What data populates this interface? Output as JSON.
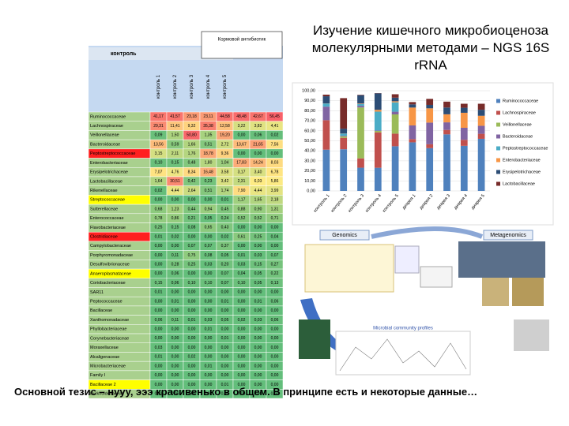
{
  "title": "Изучение кишечного микробиоценоза молекулярными методами – NGS 16S rRNA",
  "caption": "Основной тезис – нууу, эээ красивенько в общем.  В принципе есть и некоторые данные…",
  "table": {
    "group_header": "контроль",
    "note_box": "Кормовой антибиотик",
    "columns": [
      "контроль 1",
      "контроль 2",
      "контроль 3",
      "контроль 4",
      "контроль 5",
      null,
      null,
      null
    ],
    "rows": [
      {
        "name": "Ruminococcaceae",
        "color": "#a9d08e",
        "cells": [
          "41,17",
          "41,57",
          "23,18",
          "23,11",
          "44,58",
          "48,48",
          "42,67",
          "56,45"
        ]
      },
      {
        "name": "Lachnospiraceae",
        "color": "#a9d08e",
        "cells": [
          "29,31",
          "11,41",
          "9,32",
          "35,38",
          "12,58",
          "3,22",
          "3,82",
          "4,41"
        ]
      },
      {
        "name": "Veillonellaceae",
        "color": "#a9d08e",
        "cells": [
          "0,09",
          "1,50",
          "50,80",
          "1,35",
          "19,20",
          "0,00",
          "0,06",
          "0,02"
        ]
      },
      {
        "name": "Bacteroidaceae",
        "color": "#a9d08e",
        "cells": [
          "13,56",
          "0,59",
          "1,66",
          "0,51",
          "2,72",
          "13,67",
          "21,65",
          "7,56"
        ]
      },
      {
        "name": "Peptostreptococcaceae",
        "color": "#ff2020",
        "cells": [
          "3,15",
          "2,11",
          "1,76",
          "18,78",
          "9,36",
          "0,00",
          "0,00",
          "0,00"
        ]
      },
      {
        "name": "Enterobacteriaceae",
        "color": "#a9d08e",
        "cells": [
          "0,10",
          "0,15",
          "0,48",
          "1,80",
          "1,04",
          "17,83",
          "14,24",
          "8,03"
        ]
      },
      {
        "name": "Erysipelotrichaceae",
        "color": "#a9d08e",
        "cells": [
          "7,07",
          "4,76",
          "8,34",
          "16,48",
          "3,58",
          "3,17",
          "3,40",
          "6,78"
        ]
      },
      {
        "name": "Lactobacillaceae",
        "color": "#a9d08e",
        "cells": [
          "1,64",
          "30,51",
          "0,42",
          "0,23",
          "3,42",
          "2,31",
          "6,03",
          "5,86"
        ]
      },
      {
        "name": "Rikenellaceae",
        "color": "#a9d08e",
        "cells": [
          "0,02",
          "4,44",
          "2,64",
          "0,51",
          "1,74",
          "7,90",
          "4,44",
          "3,99"
        ]
      },
      {
        "name": "Streptococcaceae",
        "color": "#ffff00",
        "cells": [
          "0,00",
          "0,00",
          "0,00",
          "0,00",
          "0,01",
          "1,17",
          "1,65",
          "2,18"
        ]
      },
      {
        "name": "Sutterellaceae",
        "color": "#a9d08e",
        "cells": [
          "0,68",
          "1,23",
          "0,44",
          "0,94",
          "0,45",
          "0,88",
          "0,90",
          "1,31"
        ]
      },
      {
        "name": "Enterococcaceae",
        "color": "#a9d08e",
        "cells": [
          "0,78",
          "0,86",
          "0,21",
          "0,05",
          "0,24",
          "0,52",
          "0,52",
          "0,71"
        ]
      },
      {
        "name": "Flavobacteriaceae",
        "color": "#a9d08e",
        "cells": [
          "0,25",
          "0,15",
          "0,08",
          "0,65",
          "0,43",
          "0,00",
          "0,00",
          "0,00"
        ]
      },
      {
        "name": "Clostridiaceae",
        "color": "#ff2020",
        "cells": [
          "0,01",
          "0,02",
          "0,00",
          "0,00",
          "0,02",
          "0,61",
          "0,25",
          "0,04"
        ]
      },
      {
        "name": "Campylobacteraceae",
        "color": "#a9d08e",
        "cells": [
          "0,00",
          "0,00",
          "0,07",
          "0,07",
          "0,37",
          "0,00",
          "0,00",
          "0,00"
        ]
      },
      {
        "name": "Porphyromonadaceae",
        "color": "#a9d08e",
        "cells": [
          "0,00",
          "0,11",
          "0,75",
          "0,08",
          "0,05",
          "0,01",
          "0,03",
          "0,07"
        ]
      },
      {
        "name": "Desulfovibrionaceae",
        "color": "#a9d08e",
        "cells": [
          "0,00",
          "0,28",
          "0,25",
          "0,03",
          "0,20",
          "0,03",
          "0,15",
          "0,27"
        ]
      },
      {
        "name": "Anaeroplasmataceae",
        "color": "#ffff00",
        "cells": [
          "0,00",
          "0,06",
          "0,00",
          "0,00",
          "0,07",
          "0,04",
          "0,05",
          "0,22"
        ]
      },
      {
        "name": "Coriobacteriaceae",
        "color": "#a9d08e",
        "cells": [
          "0,15",
          "0,06",
          "0,10",
          "0,10",
          "0,07",
          "0,10",
          "0,05",
          "0,13"
        ]
      },
      {
        "name": "SAR11",
        "color": "#a9d08e",
        "cells": [
          "0,01",
          "0,00",
          "0,00",
          "0,00",
          "0,00",
          "0,00",
          "0,00",
          "0,00"
        ]
      },
      {
        "name": "Peptococcaceae",
        "color": "#a9d08e",
        "cells": [
          "0,00",
          "0,01",
          "0,00",
          "0,00",
          "0,01",
          "0,00",
          "0,01",
          "0,06"
        ]
      },
      {
        "name": "Bacillaceae",
        "color": "#a9d08e",
        "cells": [
          "0,00",
          "0,00",
          "0,00",
          "0,00",
          "0,00",
          "0,00",
          "0,00",
          "0,00"
        ]
      },
      {
        "name": "Xanthomonadaceae",
        "color": "#a9d08e",
        "cells": [
          "0,06",
          "0,11",
          "0,01",
          "0,03",
          "0,05",
          "0,02",
          "0,03",
          "0,06"
        ]
      },
      {
        "name": "Phyllobacteriaceae",
        "color": "#a9d08e",
        "cells": [
          "0,00",
          "0,00",
          "0,00",
          "0,01",
          "0,00",
          "0,00",
          "0,00",
          "0,00"
        ]
      },
      {
        "name": "Corynebacteriaceae",
        "color": "#a9d08e",
        "cells": [
          "0,00",
          "0,00",
          "0,00",
          "0,00",
          "0,01",
          "0,00",
          "0,00",
          "0,00"
        ]
      },
      {
        "name": "Moraxellaceae",
        "color": "#a9d08e",
        "cells": [
          "0,03",
          "0,00",
          "0,00",
          "0,00",
          "0,00",
          "0,00",
          "0,00",
          "0,00"
        ]
      },
      {
        "name": "Alcaligenaceae",
        "color": "#a9d08e",
        "cells": [
          "0,01",
          "0,00",
          "0,02",
          "0,00",
          "0,00",
          "0,00",
          "0,00",
          "0,00"
        ]
      },
      {
        "name": "Microbacteriaceae",
        "color": "#a9d08e",
        "cells": [
          "0,00",
          "0,00",
          "0,00",
          "0,01",
          "0,00",
          "0,00",
          "0,00",
          "0,00"
        ]
      },
      {
        "name": "Family I",
        "color": "#a9d08e",
        "cells": [
          "0,00",
          "0,00",
          "0,00",
          "0,00",
          "0,00",
          "0,00",
          "0,00",
          "0,00"
        ]
      },
      {
        "name": "Bacillaceae 2",
        "color": "#ffff00",
        "cells": [
          "0,00",
          "0,00",
          "0,00",
          "0,00",
          "0,01",
          "0,00",
          "0,00",
          "0,00"
        ]
      },
      {
        "name": "Burkholderiaceae",
        "color": "#a9d08e",
        "cells": [
          "0,01",
          "0,00",
          "0,00",
          "0,01",
          "0,00",
          "0,00",
          "0,00",
          "0,00"
        ]
      }
    ]
  },
  "chart_data": {
    "type": "bar",
    "stacked": true,
    "categories": [
      "контроль 1",
      "контроль 2",
      "контроль 3",
      "контроль 4",
      "контроль 5",
      "диарея 1",
      "диарея 2",
      "диарея 3",
      "диарея 4",
      "диарея 5"
    ],
    "series": [
      {
        "name": "Ruminococcaceae",
        "color": "#4f81bd",
        "values": [
          41.17,
          41.57,
          23.18,
          23.11,
          44.58,
          48.48,
          42.67,
          56.45,
          45,
          52
        ]
      },
      {
        "name": "Lachnospiraceae",
        "color": "#c0504d",
        "values": [
          29.31,
          11.41,
          9.32,
          35.38,
          12.58,
          3.22,
          3.82,
          4.41,
          6,
          5
        ]
      },
      {
        "name": "Veillonellaceae",
        "color": "#9bbb59",
        "values": [
          0.09,
          1.5,
          50.8,
          1.35,
          19.2,
          0,
          0.06,
          0.02,
          0,
          0
        ]
      },
      {
        "name": "Bacteroidaceae",
        "color": "#8064a2",
        "values": [
          13.56,
          0.59,
          1.66,
          0.51,
          2.72,
          13.67,
          21.65,
          7.56,
          12,
          8
        ]
      },
      {
        "name": "Peptostreptococcaceae",
        "color": "#4bacc6",
        "values": [
          3.15,
          2.11,
          1.76,
          18.78,
          9.36,
          0,
          0,
          0,
          0,
          0
        ]
      },
      {
        "name": "Enterobacteriaceae",
        "color": "#f79646",
        "values": [
          0.1,
          0.15,
          0.48,
          1.8,
          1.04,
          17.83,
          14.24,
          8.03,
          15,
          10
        ]
      },
      {
        "name": "Erysipelotrichaceae",
        "color": "#2c4d75",
        "values": [
          7.07,
          4.76,
          8.34,
          16.48,
          3.58,
          3.17,
          3.4,
          6.78,
          5,
          6
        ]
      },
      {
        "name": "Lactobacillaceae",
        "color": "#772c2a",
        "values": [
          1.64,
          30.51,
          0.42,
          0.23,
          3.42,
          2.31,
          6.03,
          5.86,
          4,
          6
        ]
      }
    ],
    "ylim": [
      0,
      100
    ],
    "yticks": [
      {
        "value": 0,
        "label": "0,00"
      },
      {
        "value": 10,
        "label": "10,00"
      },
      {
        "value": 20,
        "label": "20,00"
      },
      {
        "value": 30,
        "label": "30,00"
      },
      {
        "value": 40,
        "label": "40,00"
      },
      {
        "value": 50,
        "label": "50,00"
      },
      {
        "value": 60,
        "label": "60,00"
      },
      {
        "value": 70,
        "label": "70,00"
      },
      {
        "value": 80,
        "label": "80,00"
      },
      {
        "value": 90,
        "label": "90,00"
      },
      {
        "value": 100,
        "label": "100,00"
      }
    ]
  },
  "diagram": {
    "genomics": "Genomics",
    "metagenomics": "Metagenomics",
    "profiles": "Microbial community profiles"
  }
}
